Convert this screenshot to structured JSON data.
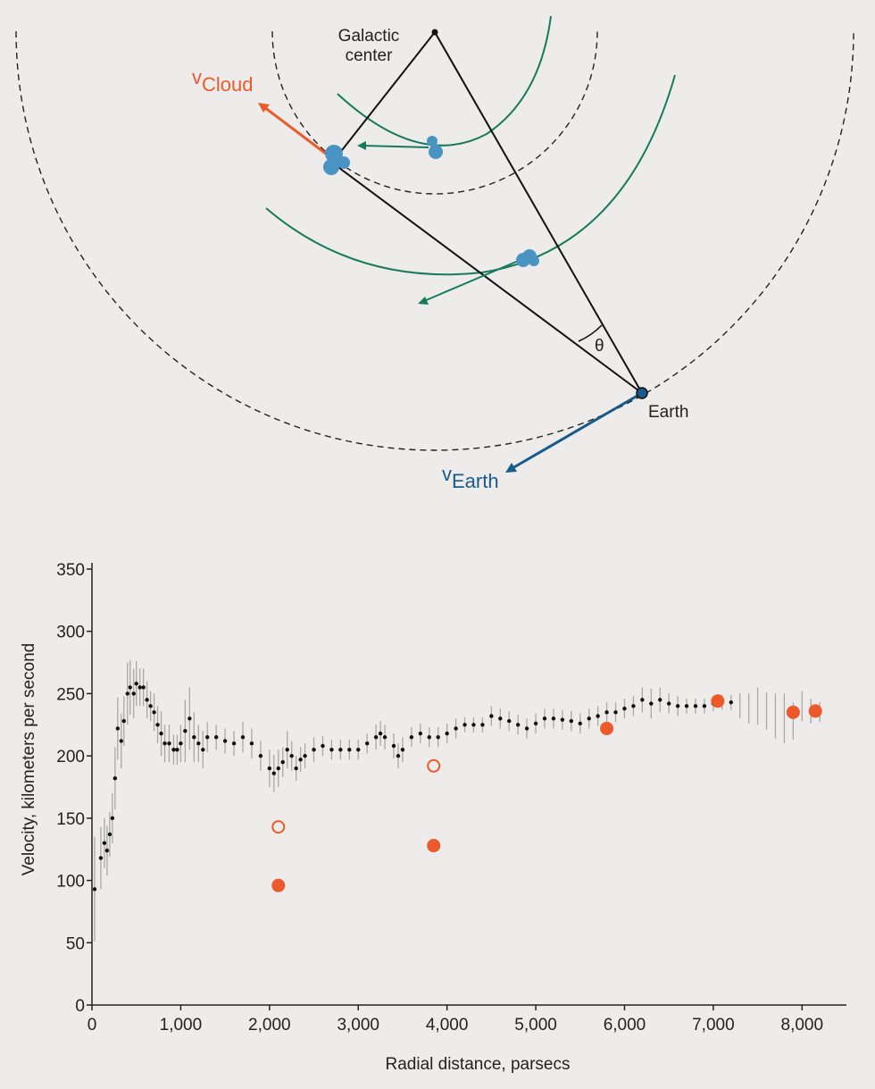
{
  "diagram": {
    "galactic_center": "Galactic\ncenter",
    "v_cloud": {
      "symbol": "v",
      "subscript": "Cloud"
    },
    "v_earth": {
      "symbol": "v",
      "subscript": "Earth"
    },
    "earth": "Earth",
    "angle": "θ"
  },
  "chart_data": {
    "type": "scatter",
    "xlabel": "Radial distance, parsecs",
    "ylabel": "Velocity, kilometers per second",
    "xlim": [
      0,
      8500
    ],
    "ylim": [
      0,
      355
    ],
    "xticks": [
      0,
      {
        "value": 1000,
        "label": "1,000"
      },
      {
        "value": 2000,
        "label": "2,000"
      },
      {
        "value": 3000,
        "label": "3,000"
      },
      {
        "value": 4000,
        "label": "4,000"
      },
      {
        "value": 5000,
        "label": "5,000"
      },
      {
        "value": 6000,
        "label": "6,000"
      },
      {
        "value": 7000,
        "label": "7,000"
      },
      {
        "value": 8000,
        "label": "8,000"
      }
    ],
    "yticks": [
      0,
      50,
      100,
      150,
      200,
      250,
      300,
      350
    ],
    "series": [
      {
        "color": "#111111",
        "error_color": "#a8a8a8",
        "marker": "dot",
        "x": [
          30,
          100,
          140,
          170,
          200,
          230,
          260,
          290,
          330,
          360,
          400,
          430,
          470,
          500,
          540,
          580,
          620,
          660,
          700,
          740,
          780,
          820,
          870,
          920,
          960,
          1000,
          1050,
          1100,
          1150,
          1200,
          1250,
          1300,
          1400,
          1500,
          1600,
          1700,
          1800,
          1900,
          2000,
          2050,
          2100,
          2150,
          2200,
          2250,
          2300,
          2350,
          2400,
          2500,
          2600,
          2700,
          2800,
          2900,
          3000,
          3100,
          3200,
          3250,
          3300,
          3400,
          3450,
          3500,
          3600,
          3700,
          3800,
          3900,
          4000,
          4100,
          4200,
          4300,
          4400,
          4500,
          4600,
          4700,
          4800,
          4900,
          5000,
          5100,
          5200,
          5300,
          5400,
          5500,
          5600,
          5700,
          5800,
          5900,
          6000,
          6100,
          6200,
          6300,
          6400,
          6500,
          6600,
          6700,
          6800,
          6900,
          7000,
          7100,
          7200
        ],
        "values": [
          93,
          118,
          130,
          124,
          137,
          150,
          182,
          222,
          212,
          228,
          250,
          255,
          250,
          258,
          255,
          255,
          245,
          240,
          235,
          225,
          218,
          210,
          210,
          205,
          205,
          210,
          220,
          230,
          215,
          210,
          205,
          215,
          215,
          212,
          210,
          215,
          210,
          200,
          190,
          186,
          190,
          195,
          205,
          200,
          190,
          197,
          200,
          205,
          208,
          205,
          205,
          205,
          205,
          210,
          215,
          218,
          215,
          208,
          200,
          205,
          215,
          218,
          215,
          215,
          218,
          222,
          225,
          225,
          225,
          232,
          230,
          228,
          225,
          222,
          226,
          230,
          230,
          229,
          228,
          226,
          230,
          232,
          235,
          235,
          238,
          240,
          245,
          242,
          245,
          242,
          240,
          240,
          240,
          240,
          242,
          243,
          243
        ],
        "errors": [
          42,
          25,
          20,
          20,
          18,
          20,
          25,
          25,
          22,
          20,
          25,
          22,
          20,
          18,
          15,
          15,
          15,
          12,
          15,
          15,
          18,
          15,
          15,
          12,
          12,
          15,
          25,
          25,
          20,
          15,
          15,
          12,
          10,
          10,
          10,
          12,
          12,
          12,
          15,
          15,
          15,
          12,
          15,
          12,
          10,
          10,
          10,
          10,
          8,
          8,
          8,
          8,
          8,
          8,
          10,
          10,
          10,
          10,
          10,
          10,
          8,
          8,
          8,
          8,
          8,
          8,
          6,
          6,
          6,
          8,
          8,
          8,
          8,
          8,
          8,
          8,
          8,
          8,
          8,
          8,
          8,
          8,
          8,
          8,
          8,
          8,
          10,
          12,
          10,
          8,
          8,
          6,
          6,
          6,
          6,
          6,
          6
        ]
      },
      {
        "color": "#111111",
        "error_color": "#a8a8a8",
        "marker": "none",
        "x": [
          7300,
          7400,
          7500,
          7600,
          7700,
          7800,
          7900,
          8000,
          8100,
          8200
        ],
        "values": [
          240,
          238,
          240,
          236,
          232,
          230,
          228,
          240,
          236,
          235
        ],
        "errors": [
          10,
          12,
          15,
          15,
          18,
          20,
          15,
          12,
          10,
          8
        ]
      },
      {
        "color": "#ec5a2c",
        "marker": "filled",
        "x": [
          2100,
          3850,
          5800,
          7050,
          7900,
          8150
        ],
        "values": [
          96,
          128,
          222,
          244,
          235,
          236
        ]
      },
      {
        "color": "#ec5a2c",
        "marker": "open",
        "x": [
          2100,
          3850
        ],
        "values": [
          143,
          192
        ]
      }
    ]
  }
}
